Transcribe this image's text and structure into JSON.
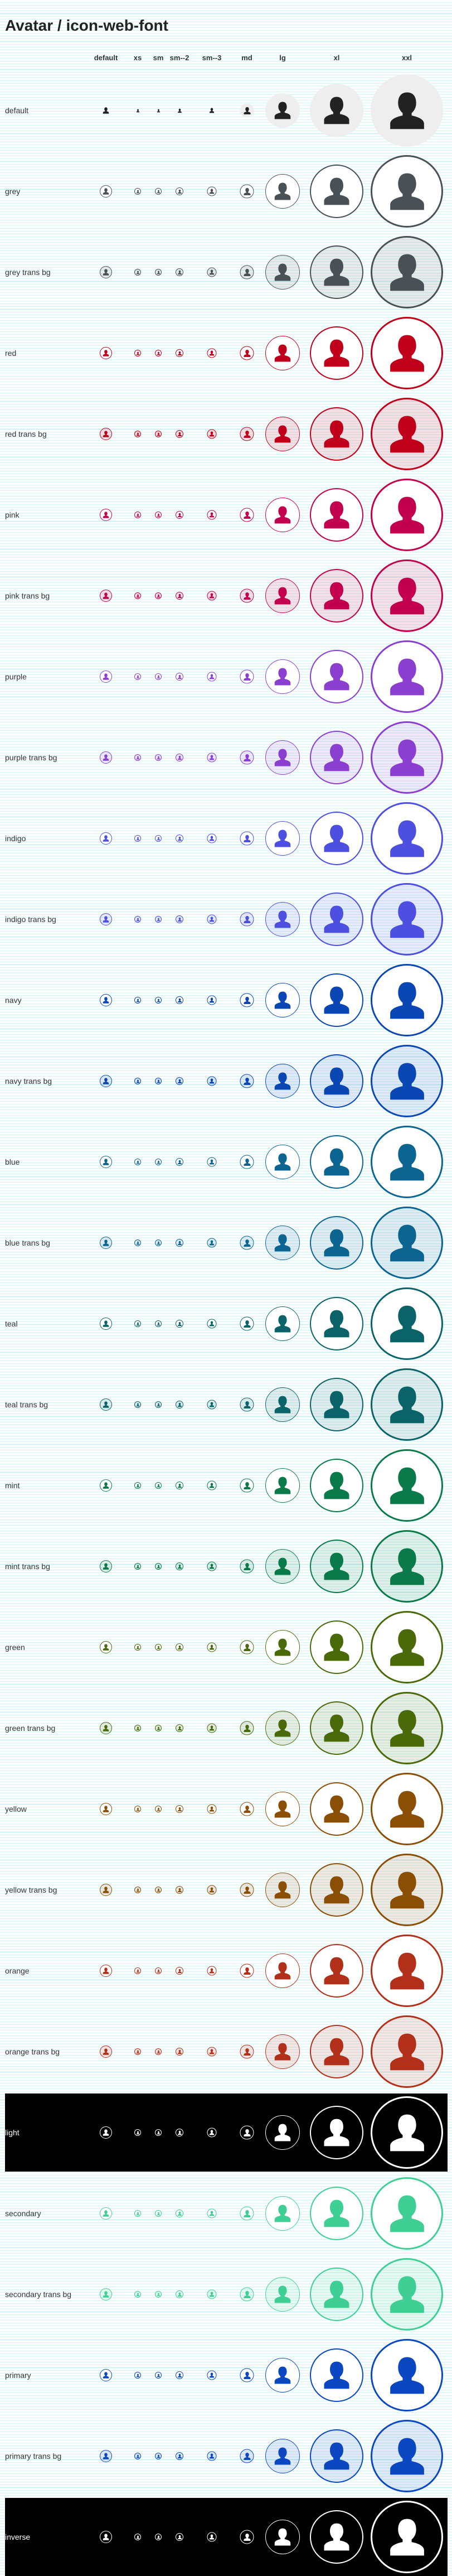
{
  "page": {
    "title": "Avatar / icon-web-font"
  },
  "columns": [
    "default",
    "xs",
    "sm",
    "sm--2",
    "sm--3",
    "md",
    "lg",
    "xl",
    "xxl"
  ],
  "rows": [
    {
      "label": "default",
      "color": "#222222",
      "mode": "default"
    },
    {
      "label": "grey",
      "color": "#4a5156",
      "mode": "solid"
    },
    {
      "label": "grey trans bg",
      "color": "#4a5156",
      "mode": "trans"
    },
    {
      "label": "red",
      "color": "#c0001a",
      "mode": "solid"
    },
    {
      "label": "red trans bg",
      "color": "#c0001a",
      "mode": "trans"
    },
    {
      "label": "pink",
      "color": "#c2004d",
      "mode": "solid"
    },
    {
      "label": "pink trans bg",
      "color": "#c2004d",
      "mode": "trans"
    },
    {
      "label": "purple",
      "color": "#8a3fd1",
      "mode": "solid"
    },
    {
      "label": "purple trans bg",
      "color": "#8a3fd1",
      "mode": "trans"
    },
    {
      "label": "indigo",
      "color": "#4c4fe0",
      "mode": "solid"
    },
    {
      "label": "indigo trans bg",
      "color": "#4c4fe0",
      "mode": "trans"
    },
    {
      "label": "navy",
      "color": "#0a47b4",
      "mode": "solid"
    },
    {
      "label": "navy trans bg",
      "color": "#0a47b4",
      "mode": "trans"
    },
    {
      "label": "blue",
      "color": "#0b6590",
      "mode": "solid"
    },
    {
      "label": "blue trans bg",
      "color": "#0b6590",
      "mode": "trans"
    },
    {
      "label": "teal",
      "color": "#0a6368",
      "mode": "solid"
    },
    {
      "label": "teal trans bg",
      "color": "#0a6368",
      "mode": "trans"
    },
    {
      "label": "mint",
      "color": "#0a7a4a",
      "mode": "solid"
    },
    {
      "label": "mint trans bg",
      "color": "#0a7a4a",
      "mode": "trans"
    },
    {
      "label": "green",
      "color": "#4a6a0a",
      "mode": "solid"
    },
    {
      "label": "green trans bg",
      "color": "#4a6a0a",
      "mode": "trans"
    },
    {
      "label": "yellow",
      "color": "#8a4e05",
      "mode": "solid"
    },
    {
      "label": "yellow trans bg",
      "color": "#8a4e05",
      "mode": "trans"
    },
    {
      "label": "orange",
      "color": "#b2301a",
      "mode": "solid"
    },
    {
      "label": "orange trans bg",
      "color": "#b2301a",
      "mode": "trans"
    },
    {
      "label": "light",
      "color": "#ffffff",
      "mode": "light"
    },
    {
      "label": "secondary",
      "color": "#3fcf95",
      "mode": "solid"
    },
    {
      "label": "secondary trans bg",
      "color": "#3fcf95",
      "mode": "trans"
    },
    {
      "label": "primary",
      "color": "#0a47c0",
      "mode": "solid"
    },
    {
      "label": "primary trans bg",
      "color": "#0a47c0",
      "mode": "trans"
    },
    {
      "label": "inverse",
      "color": "#ffffff",
      "mode": "light"
    }
  ],
  "icon": "user-icon"
}
